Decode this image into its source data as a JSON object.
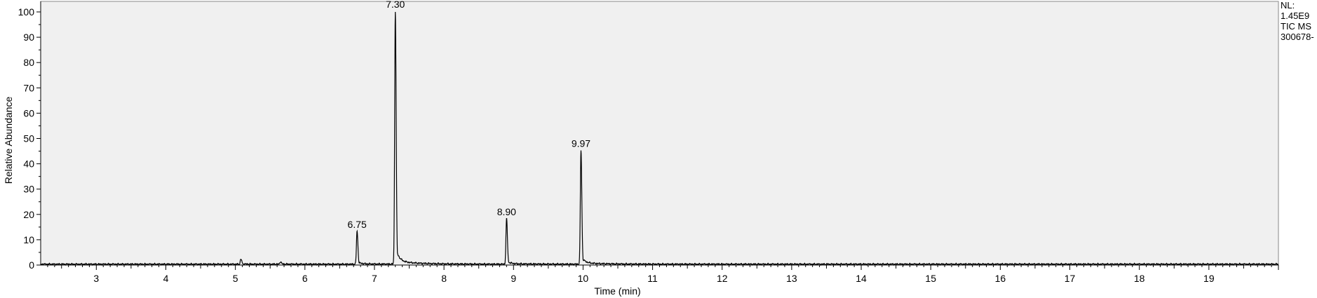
{
  "chart_data": {
    "type": "line",
    "xlabel": "Time (min)",
    "ylabel": "Relative Abundance",
    "xlim": [
      2.2,
      20.0
    ],
    "ylim": [
      0,
      100
    ],
    "x_ticks": [
      3,
      4,
      5,
      6,
      7,
      8,
      9,
      10,
      11,
      12,
      13,
      14,
      15,
      16,
      17,
      18,
      19
    ],
    "y_ticks": [
      0,
      10,
      20,
      30,
      40,
      50,
      60,
      70,
      80,
      90,
      100
    ],
    "grid": false,
    "peaks": [
      {
        "rt": 6.75,
        "height": 13,
        "label": "6.75"
      },
      {
        "rt": 7.3,
        "height": 100,
        "label": "7.30"
      },
      {
        "rt": 8.9,
        "height": 18,
        "label": "8.90"
      },
      {
        "rt": 9.97,
        "height": 45,
        "label": "9.97"
      }
    ],
    "minor_peaks": [
      {
        "rt": 5.08,
        "height": 2
      },
      {
        "rt": 5.65,
        "height": 1
      }
    ],
    "colors": {
      "background": "#f0f0f0",
      "trace": "#000000"
    }
  },
  "side_info": {
    "nl_label": "NL:",
    "nl_value": "1.45E9",
    "scan_type": "TIC  MS",
    "file_id": "300678-"
  }
}
